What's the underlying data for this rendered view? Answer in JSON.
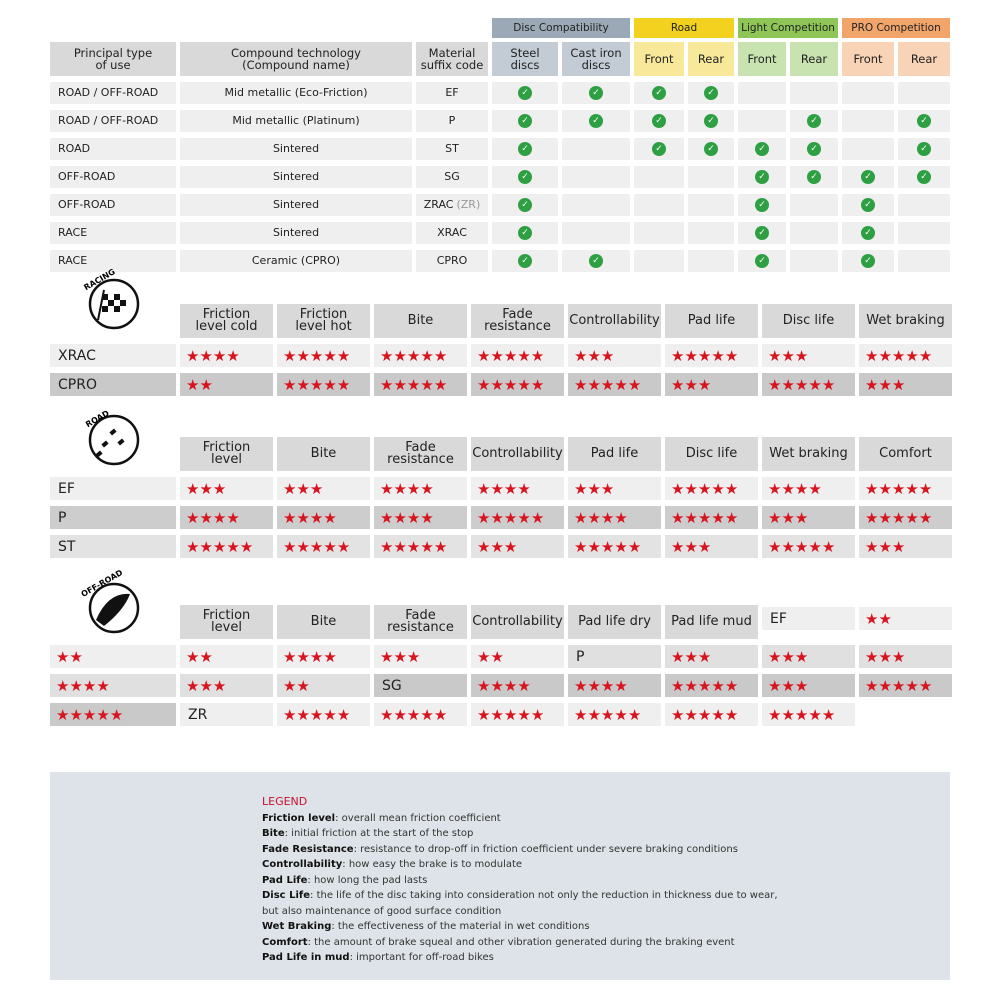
{
  "compat": {
    "groups": [
      {
        "label": "Disc Compatibility",
        "span": 2,
        "color": "#9aa9b5",
        "sub": "#c3ccd4"
      },
      {
        "label": "Road",
        "span": 2,
        "color": "#f2d21f",
        "sub": "#f8e89a"
      },
      {
        "label": "Light Competition",
        "span": 2,
        "color": "#8dc556",
        "sub": "#c9e3b0"
      },
      {
        "label": "PRO Competition",
        "span": 2,
        "color": "#f2a56b",
        "sub": "#f9d3b5"
      }
    ],
    "headers": [
      "Principal type\nof use",
      "Compound technology\n(Compound name)",
      "Material\nsuffix code",
      "Steel\ndiscs",
      "Cast iron\ndiscs",
      "Front",
      "Rear",
      "Front",
      "Rear",
      "Front",
      "Rear"
    ],
    "rows": [
      {
        "use": "ROAD / OFF-ROAD",
        "compound": "Mid metallic (Eco-Friction)",
        "code": "EF",
        "code_extra": "",
        "checks": [
          1,
          1,
          1,
          1,
          0,
          0,
          0,
          0
        ]
      },
      {
        "use": "ROAD / OFF-ROAD",
        "compound": "Mid metallic (Platinum)",
        "code": "P",
        "code_extra": "",
        "checks": [
          1,
          1,
          1,
          1,
          0,
          1,
          0,
          1
        ]
      },
      {
        "use": "ROAD",
        "compound": "Sintered",
        "code": "ST",
        "code_extra": "",
        "checks": [
          1,
          0,
          1,
          1,
          1,
          1,
          0,
          1
        ]
      },
      {
        "use": "OFF-ROAD",
        "compound": "Sintered",
        "code": "SG",
        "code_extra": "",
        "checks": [
          1,
          0,
          0,
          0,
          1,
          1,
          1,
          1
        ]
      },
      {
        "use": "OFF-ROAD",
        "compound": "Sintered",
        "code": "ZRAC",
        "code_extra": "(ZR)",
        "checks": [
          1,
          0,
          0,
          0,
          1,
          0,
          1,
          0
        ]
      },
      {
        "use": "RACE",
        "compound": "Sintered",
        "code": "XRAC",
        "code_extra": "",
        "checks": [
          1,
          0,
          0,
          0,
          1,
          0,
          1,
          0
        ]
      },
      {
        "use": "RACE",
        "compound": "Ceramic (CPRO)",
        "code": "CPRO",
        "code_extra": "",
        "checks": [
          1,
          1,
          0,
          0,
          1,
          0,
          1,
          0
        ]
      }
    ]
  },
  "ratings": [
    {
      "icon_label": "RACING",
      "icon": "checkered-flag-icon",
      "headers": [
        "Friction\nlevel cold",
        "Friction\nlevel hot",
        "Bite",
        "Fade\nresistance",
        "Controllability",
        "Pad life",
        "Disc life",
        "Wet braking"
      ],
      "rows": [
        {
          "name": "XRAC",
          "shade": "#efefef",
          "stars": [
            4,
            5,
            5,
            5,
            3,
            5,
            3,
            5
          ]
        },
        {
          "name": "CPRO",
          "shade": "#c9c9c9",
          "stars": [
            2,
            5,
            5,
            5,
            5,
            3,
            5,
            3
          ]
        }
      ]
    },
    {
      "icon_label": "ROAD",
      "icon": "road-icon",
      "headers": [
        "Friction\nlevel",
        "Bite",
        "Fade\nresistance",
        "Controllability",
        "Pad life",
        "Disc life",
        "Wet braking",
        "Comfort"
      ],
      "rows": [
        {
          "name": "EF",
          "shade": "#efefef",
          "stars": [
            3,
            3,
            4,
            4,
            3,
            5,
            4,
            5
          ]
        },
        {
          "name": "P",
          "shade": "#cdcdcd",
          "stars": [
            4,
            4,
            4,
            5,
            4,
            5,
            3,
            5
          ]
        },
        {
          "name": "ST",
          "shade": "#e3e3e3",
          "stars": [
            5,
            5,
            5,
            3,
            5,
            3,
            5,
            3
          ]
        }
      ]
    },
    {
      "icon_label": "OFF-ROAD",
      "icon": "mud-splash-icon",
      "headers": [
        "Friction\nlevel",
        "Bite",
        "Fade\nresistance",
        "Controllability",
        "Pad life dry",
        "Pad life mud"
      ],
      "rows": [
        {
          "name": "EF",
          "shade": "#efefef",
          "stars": [
            2,
            2,
            2,
            4,
            3,
            2
          ]
        },
        {
          "name": "P",
          "shade": "#e0e0e0",
          "stars": [
            3,
            3,
            3,
            4,
            3,
            2
          ]
        },
        {
          "name": "SG",
          "shade": "#c9c9c9",
          "stars": [
            4,
            4,
            5,
            3,
            5,
            5
          ]
        },
        {
          "name": "ZR",
          "shade": "#efefef",
          "stars": [
            5,
            5,
            5,
            5,
            5,
            5
          ]
        }
      ]
    }
  ],
  "legend": {
    "title": "LEGEND",
    "items": [
      {
        "term": "Friction level",
        "desc": ": overall mean friction coefficient"
      },
      {
        "term": "Bite",
        "desc": ": initial friction at the start of the stop"
      },
      {
        "term": "Fade Resistance",
        "desc": ": resistance to drop-off in friction coefficient under severe braking conditions"
      },
      {
        "term": "Controllability",
        "desc": ": how easy the brake is to modulate"
      },
      {
        "term": "Pad Life",
        "desc": ": how long the pad lasts"
      },
      {
        "term": "Disc Life",
        "desc": ": the life of the disc taking into consideration not only the reduction in thickness due to wear,"
      },
      {
        "term": "",
        "desc": "but also maintenance of good surface condition"
      },
      {
        "term": "Wet Braking",
        "desc": ": the effectiveness of the material in wet conditions"
      },
      {
        "term": "Comfort",
        "desc": ": the amount of brake squeal and other vibration generated during the braking event"
      },
      {
        "term": "Pad Life in mud",
        "desc": ": important for off-road bikes"
      }
    ]
  },
  "colors": {
    "star": "#d8141f",
    "check": "#2ea043",
    "legend_bg": "#dde3e8"
  }
}
